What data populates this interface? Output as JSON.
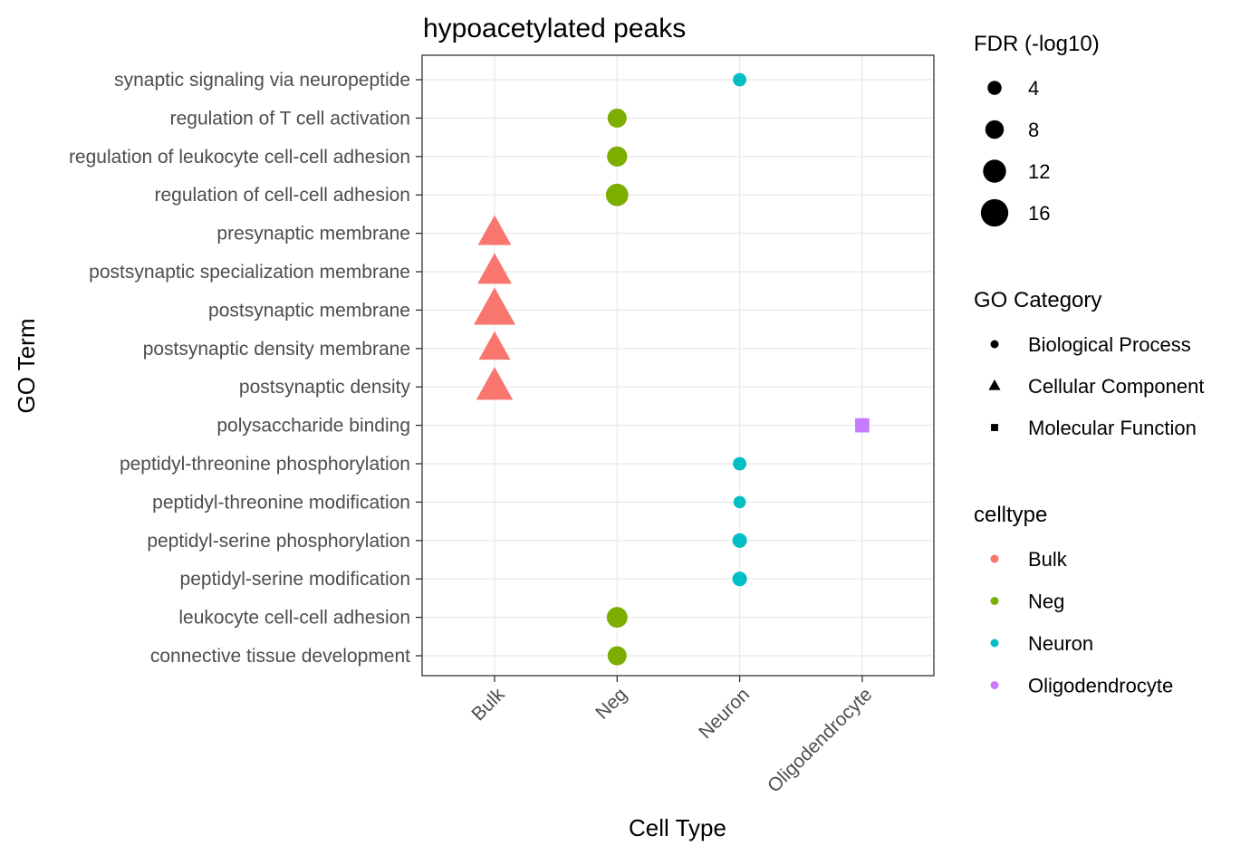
{
  "chart_data": {
    "type": "scatter",
    "title": "hypoacetylated peaks",
    "xlabel": "Cell Type",
    "ylabel": "GO Term",
    "categories_x": [
      "Bulk",
      "Neg",
      "Neuron",
      "Oligodendrocyte"
    ],
    "categories_y": [
      "synaptic signaling via neuropeptide",
      "regulation of T cell activation",
      "regulation of leukocyte cell-cell adhesion",
      "regulation of cell-cell adhesion",
      "presynaptic membrane",
      "postsynaptic specialization membrane",
      "postsynaptic membrane",
      "postsynaptic density membrane",
      "postsynaptic density",
      "polysaccharide binding",
      "peptidyl-threonine phosphorylation",
      "peptidyl-threonine modification",
      "peptidyl-serine phosphorylation",
      "peptidyl-serine modification",
      "leukocyte cell-cell adhesion",
      "connective tissue development"
    ],
    "points": [
      {
        "term": "synaptic signaling via neuropeptide",
        "celltype": "Neuron",
        "category": "Biological Process",
        "fdr": 3.5
      },
      {
        "term": "regulation of T cell activation",
        "celltype": "Neg",
        "category": "Biological Process",
        "fdr": 8.5
      },
      {
        "term": "regulation of leukocyte cell-cell adhesion",
        "celltype": "Neg",
        "category": "Biological Process",
        "fdr": 9.5
      },
      {
        "term": "regulation of cell-cell adhesion",
        "celltype": "Neg",
        "category": "Biological Process",
        "fdr": 11.5
      },
      {
        "term": "presynaptic membrane",
        "celltype": "Bulk",
        "category": "Cellular Component",
        "fdr": 12
      },
      {
        "term": "postsynaptic specialization membrane",
        "celltype": "Bulk",
        "category": "Cellular Component",
        "fdr": 12.5
      },
      {
        "term": "postsynaptic membrane",
        "celltype": "Bulk",
        "category": "Cellular Component",
        "fdr": 17
      },
      {
        "term": "postsynaptic density membrane",
        "celltype": "Bulk",
        "category": "Cellular Component",
        "fdr": 11
      },
      {
        "term": "postsynaptic density",
        "celltype": "Bulk",
        "category": "Cellular Component",
        "fdr": 14
      },
      {
        "term": "polysaccharide binding",
        "celltype": "Oligodendrocyte",
        "category": "Molecular Function",
        "fdr": 6
      },
      {
        "term": "peptidyl-threonine phosphorylation",
        "celltype": "Neuron",
        "category": "Biological Process",
        "fdr": 3.5
      },
      {
        "term": "peptidyl-threonine modification",
        "celltype": "Neuron",
        "category": "Biological Process",
        "fdr": 2.5
      },
      {
        "term": "peptidyl-serine phosphorylation",
        "celltype": "Neuron",
        "category": "Biological Process",
        "fdr": 4.5
      },
      {
        "term": "peptidyl-serine modification",
        "celltype": "Neuron",
        "category": "Biological Process",
        "fdr": 4.5
      },
      {
        "term": "leukocyte cell-cell adhesion",
        "celltype": "Neg",
        "category": "Biological Process",
        "fdr": 10
      },
      {
        "term": "connective tissue development",
        "celltype": "Neg",
        "category": "Biological Process",
        "fdr": 8.5
      }
    ],
    "grid": true,
    "legend_position": "right",
    "legends": {
      "size": {
        "title": "FDR (-log10)",
        "breaks": [
          4,
          8,
          12,
          16
        ]
      },
      "shape": {
        "title": "GO Category",
        "entries": [
          {
            "label": "Biological Process",
            "shape": "circle"
          },
          {
            "label": "Cellular Component",
            "shape": "triangle"
          },
          {
            "label": "Molecular Function",
            "shape": "square"
          }
        ]
      },
      "color": {
        "title": "celltype",
        "entries": [
          {
            "label": "Bulk",
            "color": "#F8766D"
          },
          {
            "label": "Neg",
            "color": "#7CAE00"
          },
          {
            "label": "Neuron",
            "color": "#00BFC4"
          },
          {
            "label": "Oligodendrocyte",
            "color": "#C77CFF"
          }
        ]
      }
    }
  }
}
